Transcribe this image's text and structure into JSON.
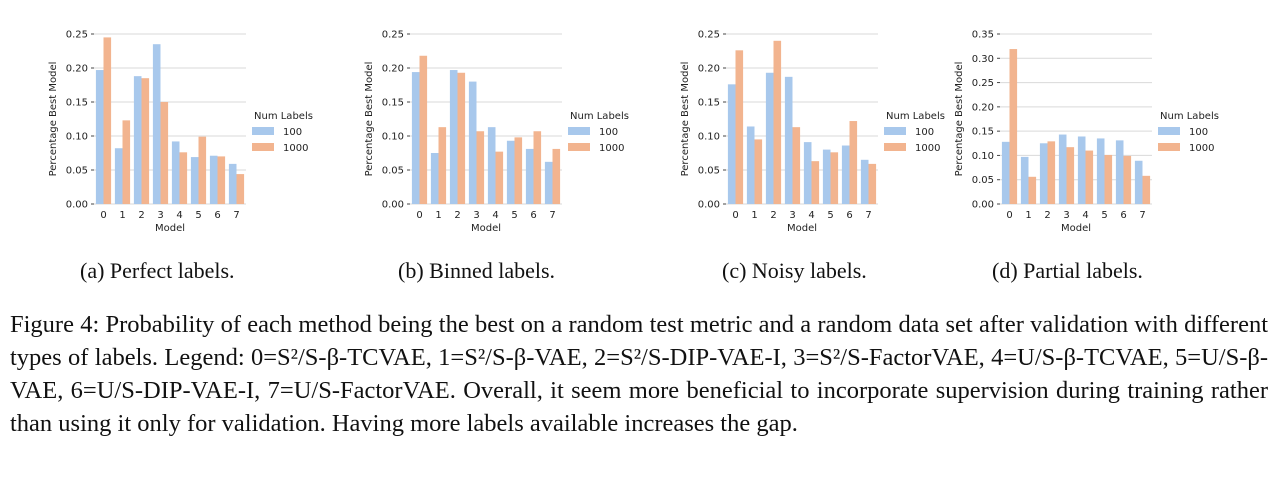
{
  "chart_data": [
    {
      "type": "bar",
      "categories": [
        "0",
        "1",
        "2",
        "3",
        "4",
        "5",
        "6",
        "7"
      ],
      "series": [
        {
          "name": "100",
          "values": [
            0.197,
            0.082,
            0.188,
            0.235,
            0.092,
            0.069,
            0.071,
            0.059
          ]
        },
        {
          "name": "1000",
          "values": [
            0.245,
            0.123,
            0.185,
            0.15,
            0.076,
            0.099,
            0.07,
            0.044
          ]
        }
      ],
      "xlabel": "Model",
      "ylabel": "Percentage Best Model",
      "ylim": [
        0,
        0.25
      ],
      "yticks": [
        "0.00",
        "0.05",
        "0.10",
        "0.15",
        "0.20",
        "0.25"
      ],
      "legend_title": "Num Labels",
      "legend_position": "right",
      "grid": true
    },
    {
      "type": "bar",
      "categories": [
        "0",
        "1",
        "2",
        "3",
        "4",
        "5",
        "6",
        "7"
      ],
      "series": [
        {
          "name": "100",
          "values": [
            0.194,
            0.075,
            0.197,
            0.18,
            0.113,
            0.093,
            0.081,
            0.062
          ]
        },
        {
          "name": "1000",
          "values": [
            0.218,
            0.113,
            0.193,
            0.107,
            0.077,
            0.098,
            0.107,
            0.081
          ]
        }
      ],
      "xlabel": "Model",
      "ylabel": "Percentage Best Model",
      "ylim": [
        0,
        0.25
      ],
      "yticks": [
        "0.00",
        "0.05",
        "0.10",
        "0.15",
        "0.20",
        "0.25"
      ],
      "legend_title": "Num Labels",
      "legend_position": "right",
      "grid": true
    },
    {
      "type": "bar",
      "categories": [
        "0",
        "1",
        "2",
        "3",
        "4",
        "5",
        "6",
        "7"
      ],
      "series": [
        {
          "name": "100",
          "values": [
            0.176,
            0.114,
            0.193,
            0.187,
            0.091,
            0.08,
            0.086,
            0.065
          ]
        },
        {
          "name": "1000",
          "values": [
            0.226,
            0.095,
            0.24,
            0.113,
            0.063,
            0.076,
            0.122,
            0.059
          ]
        }
      ],
      "xlabel": "Model",
      "ylabel": "Percentage Best Model",
      "ylim": [
        0,
        0.25
      ],
      "yticks": [
        "0.00",
        "0.05",
        "0.10",
        "0.15",
        "0.20",
        "0.25"
      ],
      "legend_title": "Num Labels",
      "legend_position": "right",
      "grid": true
    },
    {
      "type": "bar",
      "categories": [
        "0",
        "1",
        "2",
        "3",
        "4",
        "5",
        "6",
        "7"
      ],
      "series": [
        {
          "name": "100",
          "values": [
            0.128,
            0.097,
            0.125,
            0.143,
            0.139,
            0.135,
            0.131,
            0.089
          ]
        },
        {
          "name": "1000",
          "values": [
            0.319,
            0.056,
            0.129,
            0.117,
            0.11,
            0.101,
            0.099,
            0.058
          ]
        }
      ],
      "xlabel": "Model",
      "ylabel": "Percentage Best Model",
      "ylim": [
        0,
        0.35
      ],
      "yticks": [
        "0.00",
        "0.05",
        "0.10",
        "0.15",
        "0.20",
        "0.25",
        "0.30",
        "0.35"
      ],
      "legend_title": "Num Labels",
      "legend_position": "right",
      "grid": true
    }
  ],
  "colors": {
    "series_100": "#a8c8ec",
    "series_1000": "#f2b48f",
    "grid": "#d9d9d9",
    "text": "#222222"
  },
  "subcaptions": [
    "(a) Perfect labels.",
    "(b) Binned labels.",
    "(c) Noisy labels.",
    "(d) Partial labels."
  ],
  "caption": {
    "label": "Figure 4:",
    "text": "Probability of each method being the best on a random test metric and a random data set after validation with different types of labels. Legend: 0=S²/S-β-TCVAE, 1=S²/S-β-VAE, 2=S²/S-DIP-VAE-I, 3=S²/S-FactorVAE, 4=U/S-β-TCVAE, 5=U/S-β-VAE, 6=U/S-DIP-VAE-I, 7=U/S-FactorVAE. Overall, it seem more beneficial to incorporate supervision during training rather than using it only for validation. Having more labels available increases the gap."
  }
}
